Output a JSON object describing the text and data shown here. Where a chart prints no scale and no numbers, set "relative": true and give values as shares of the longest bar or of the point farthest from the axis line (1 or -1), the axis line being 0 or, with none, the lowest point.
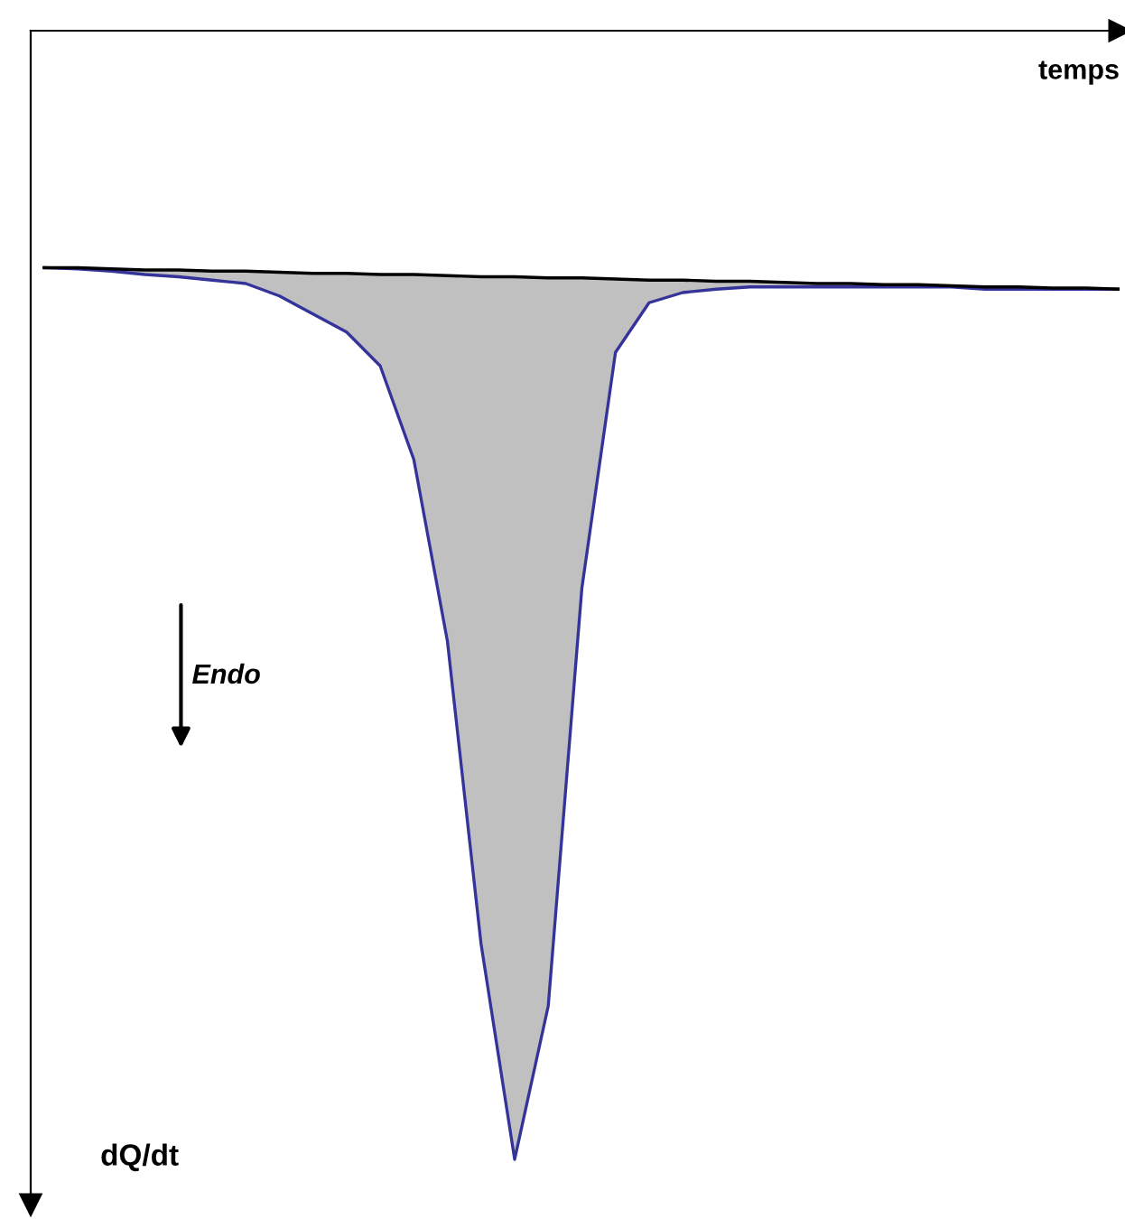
{
  "chart_data": {
    "type": "line",
    "relative": true,
    "xlabel": "temps",
    "ylabel": "dQ/dt",
    "annotations": [
      "Endo"
    ],
    "categories": [
      null,
      null,
      null,
      null,
      null,
      null,
      null,
      null,
      null,
      null,
      null,
      null,
      null,
      null,
      null,
      null,
      null,
      null,
      null,
      null,
      null,
      null,
      null,
      null,
      null,
      null,
      null,
      null,
      null,
      null,
      null,
      null,
      null
    ],
    "series": [
      {
        "type": "area",
        "color": "#333399",
        "values": [
          -0.21,
          -0.211,
          -0.213,
          -0.216,
          -0.218,
          -0.221,
          -0.224,
          -0.235,
          -0.251,
          -0.267,
          -0.297,
          -0.38,
          -0.541,
          -0.809,
          -1,
          -0.864,
          -0.494,
          -0.285,
          -0.241,
          -0.232,
          -0.229,
          -0.227,
          -0.227,
          -0.227,
          -0.227,
          -0.227,
          -0.227,
          -0.227,
          -0.229,
          -0.229,
          -0.229,
          -0.229,
          -0.229
        ]
      },
      {
        "color": "#000000",
        "values": [
          -0.21,
          -0.21,
          -0.211,
          -0.212,
          -0.212,
          -0.213,
          -0.213,
          -0.214,
          -0.215,
          -0.215,
          -0.216,
          -0.216,
          -0.217,
          -0.218,
          -0.218,
          -0.219,
          -0.219,
          -0.22,
          -0.221,
          -0.221,
          -0.222,
          -0.222,
          -0.223,
          -0.224,
          -0.224,
          -0.225,
          -0.225,
          -0.226,
          -0.227,
          -0.227,
          -0.228,
          -0.228,
          -0.229
        ]
      }
    ]
  }
}
